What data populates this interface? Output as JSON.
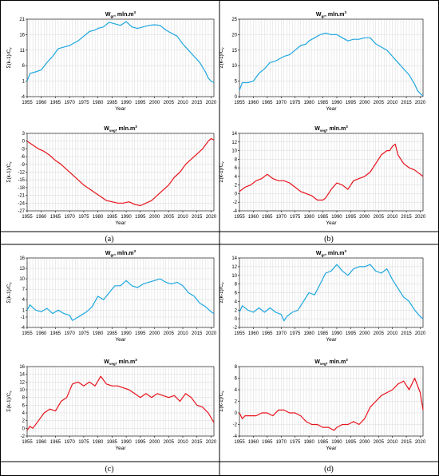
{
  "captions": [
    "(a)",
    "(b)",
    "(c)",
    "(d)"
  ],
  "colors": {
    "gw": "#1ea7e0",
    "veg": "#e8121b"
  },
  "chart_data": [
    {
      "type": "line",
      "panel": "a",
      "title_main": "W",
      "title_sub": "gr",
      "title_rest": ", mln.m",
      "title_sup": "3",
      "xlabel": "Year",
      "ylabel": "Σ(k-1)/C",
      "ylabel_sub": "v",
      "xlim": [
        1955,
        2021
      ],
      "ylim": [
        -4,
        21
      ],
      "yticks": [
        -4,
        1,
        6,
        11,
        16,
        21
      ],
      "xticks": [
        1955,
        1960,
        1965,
        1970,
        1975,
        1980,
        1985,
        1990,
        1995,
        2000,
        2005,
        2010,
        2015,
        2020
      ],
      "series_color": "gw",
      "x": [
        1955,
        1956,
        1958,
        1960,
        1962,
        1964,
        1966,
        1968,
        1970,
        1971,
        1973,
        1975,
        1977,
        1979,
        1980,
        1982,
        1984,
        1986,
        1988,
        1990,
        1992,
        1994,
        1996,
        1998,
        2000,
        2002,
        2004,
        2006,
        2008,
        2010,
        2012,
        2014,
        2016,
        2018,
        2019,
        2020,
        2021
      ],
      "y": [
        1,
        3.5,
        4,
        4.6,
        7,
        9,
        11.5,
        12,
        12.5,
        13,
        14,
        15.5,
        17,
        17.5,
        18,
        18.5,
        20,
        19.5,
        19,
        20.2,
        18.5,
        18,
        18.5,
        19,
        19.2,
        19,
        17.5,
        16.5,
        15.5,
        13,
        11,
        9,
        7,
        4,
        2,
        1,
        0.5
      ]
    },
    {
      "type": "line",
      "panel": "a",
      "title_main": "W",
      "title_sub": "veg",
      "title_rest": ", mln.m",
      "title_sup": "3",
      "xlabel": "Year",
      "ylabel": "Σ(k-1)/C",
      "ylabel_sub": "v",
      "xlim": [
        1955,
        2021
      ],
      "ylim": [
        -27,
        3
      ],
      "yticks": [
        -27,
        -24,
        -21,
        -18,
        -15,
        -12,
        -9,
        -6,
        -3,
        0,
        3
      ],
      "xticks": [
        1955,
        1960,
        1965,
        1970,
        1975,
        1980,
        1985,
        1990,
        1995,
        2000,
        2005,
        2010,
        2015,
        2020
      ],
      "series_color": "veg",
      "x": [
        1955,
        1957,
        1959,
        1961,
        1963,
        1965,
        1967,
        1969,
        1971,
        1973,
        1975,
        1977,
        1979,
        1981,
        1983,
        1985,
        1987,
        1989,
        1991,
        1993,
        1995,
        1997,
        1999,
        2001,
        2003,
        2005,
        2007,
        2009,
        2011,
        2013,
        2015,
        2017,
        2019,
        2020,
        2021
      ],
      "y": [
        0,
        -1.5,
        -3,
        -4,
        -5.5,
        -7.5,
        -9,
        -11,
        -13,
        -15,
        -17,
        -18.5,
        -20,
        -21.5,
        -23,
        -23.5,
        -24,
        -24,
        -23.5,
        -24.5,
        -25,
        -24,
        -23,
        -21,
        -19,
        -17,
        -14,
        -12,
        -9,
        -7,
        -5,
        -3,
        0,
        1,
        0.5
      ]
    },
    {
      "type": "line",
      "panel": "b",
      "title_main": "W",
      "title_sub": "gr",
      "title_rest": ", mln.m",
      "title_sup": "3",
      "xlabel": "Year",
      "ylabel": "Σ(k-1)/C",
      "ylabel_sub": "v",
      "xlim": [
        1955,
        2021
      ],
      "ylim": [
        0,
        25
      ],
      "yticks": [
        0,
        5,
        10,
        15,
        20,
        25
      ],
      "xticks": [
        1955,
        1960,
        1965,
        1970,
        1975,
        1980,
        1985,
        1990,
        1995,
        2000,
        2005,
        2010,
        2015,
        2020
      ],
      "series_color": "gw",
      "x": [
        1955,
        1956,
        1958,
        1960,
        1962,
        1964,
        1966,
        1968,
        1970,
        1971,
        1973,
        1975,
        1977,
        1979,
        1980,
        1982,
        1984,
        1986,
        1988,
        1990,
        1992,
        1994,
        1996,
        1998,
        2000,
        2002,
        2004,
        2006,
        2008,
        2010,
        2012,
        2014,
        2016,
        2018,
        2019,
        2020,
        2021
      ],
      "y": [
        2,
        4.5,
        4.5,
        5,
        7.5,
        9,
        11,
        11.5,
        12.5,
        13,
        13.5,
        15,
        16.5,
        17,
        18,
        19,
        20,
        20.5,
        20,
        20,
        19,
        18,
        18.5,
        18.5,
        19,
        19,
        17,
        16,
        15,
        13,
        11,
        9,
        7,
        4,
        2,
        1,
        0.2
      ]
    },
    {
      "type": "line",
      "panel": "b",
      "title_main": "W",
      "title_sub": "veg",
      "title_rest": ", mln.m",
      "title_sup": "3",
      "xlabel": "Year",
      "ylabel": "Σ(k-1)/C",
      "ylabel_sub": "v",
      "xlim": [
        1955,
        2021
      ],
      "ylim": [
        -4,
        14
      ],
      "yticks": [
        -4,
        -2,
        0,
        2,
        4,
        6,
        8,
        10,
        12,
        14
      ],
      "xticks": [
        1955,
        1960,
        1965,
        1970,
        1975,
        1980,
        1985,
        1990,
        1995,
        2000,
        2005,
        2010,
        2015,
        2020
      ],
      "series_color": "veg",
      "x": [
        1955,
        1957,
        1959,
        1961,
        1963,
        1965,
        1967,
        1969,
        1971,
        1973,
        1975,
        1977,
        1979,
        1981,
        1983,
        1985,
        1986,
        1988,
        1990,
        1992,
        1994,
        1996,
        1998,
        2000,
        2002,
        2004,
        2006,
        2008,
        2009,
        2010,
        2011,
        2012,
        2014,
        2016,
        2018,
        2020,
        2021
      ],
      "y": [
        0.5,
        1.5,
        2,
        3,
        3.5,
        4.5,
        3.5,
        3,
        3,
        2.5,
        1.5,
        0.5,
        0,
        -0.5,
        -1.5,
        -1.5,
        -1,
        1,
        2.5,
        2,
        1,
        3,
        3.5,
        4,
        5,
        7,
        9,
        10,
        10,
        11,
        11.5,
        9,
        7,
        6,
        5.5,
        4.5,
        4
      ]
    },
    {
      "type": "line",
      "panel": "c",
      "title_main": "W",
      "title_sub": "gr",
      "title_rest": ", mln.m",
      "title_sup": "3",
      "xlabel": "Year",
      "ylabel": "Σ(k-1)/C",
      "ylabel_sub": "v",
      "xlim": [
        1955,
        2021
      ],
      "ylim": [
        -4,
        16
      ],
      "yticks": [
        -4,
        -1,
        1,
        4,
        7,
        10,
        13,
        16
      ],
      "xticks": [
        1955,
        1960,
        1965,
        1970,
        1975,
        1980,
        1985,
        1990,
        1995,
        2000,
        2005,
        2010,
        2015,
        2020
      ],
      "series_color": "gw",
      "x": [
        1955,
        1956,
        1958,
        1960,
        1962,
        1964,
        1966,
        1968,
        1970,
        1971,
        1972,
        1974,
        1976,
        1978,
        1980,
        1982,
        1984,
        1986,
        1988,
        1990,
        1992,
        1994,
        1996,
        1998,
        2000,
        2002,
        2004,
        2006,
        2008,
        2010,
        2012,
        2014,
        2016,
        2018,
        2020,
        2021
      ],
      "y": [
        1,
        2.5,
        1,
        0.5,
        1.5,
        0,
        1,
        0,
        -0.5,
        -2,
        -1.5,
        -0.5,
        0.5,
        2,
        5,
        4,
        6,
        8,
        8,
        9.5,
        8,
        7.5,
        8.5,
        9,
        9.5,
        10,
        9,
        8.5,
        9,
        8,
        6,
        5,
        3,
        2,
        0.5,
        0
      ]
    },
    {
      "type": "line",
      "panel": "c",
      "title_main": "W",
      "title_sub": "veg",
      "title_rest": ", mln.m",
      "title_sup": "3",
      "xlabel": "Year",
      "ylabel": "Σ(k-1)/C",
      "ylabel_sub": "v",
      "xlim": [
        1955,
        2021
      ],
      "ylim": [
        -2,
        16
      ],
      "yticks": [
        -2,
        0,
        2,
        4,
        6,
        8,
        10,
        12,
        14,
        16
      ],
      "xticks": [
        1955,
        1960,
        1965,
        1970,
        1975,
        1980,
        1985,
        1990,
        1995,
        2000,
        2005,
        2010,
        2015,
        2020
      ],
      "series_color": "veg",
      "x": [
        1955,
        1956,
        1957,
        1959,
        1961,
        1963,
        1965,
        1967,
        1969,
        1971,
        1973,
        1975,
        1977,
        1979,
        1981,
        1983,
        1985,
        1987,
        1989,
        1991,
        1993,
        1995,
        1997,
        1999,
        2001,
        2003,
        2005,
        2007,
        2009,
        2011,
        2013,
        2015,
        2017,
        2019,
        2021
      ],
      "y": [
        -0.5,
        0.5,
        0,
        2,
        4,
        5,
        4.5,
        7,
        8,
        11.5,
        12,
        11,
        12,
        11,
        13.5,
        11.5,
        11,
        11,
        10.5,
        10,
        9,
        8,
        9,
        8,
        9,
        8.5,
        8,
        8.5,
        7,
        9,
        8,
        6,
        5.5,
        4,
        1.5
      ]
    },
    {
      "type": "line",
      "panel": "d",
      "title_main": "W",
      "title_sub": "gr",
      "title_rest": ", mln.m",
      "title_sup": "3",
      "xlabel": "Year",
      "ylabel": "Σ(k-1)/C",
      "ylabel_sub": "v",
      "xlim": [
        1955,
        2021
      ],
      "ylim": [
        -2,
        14
      ],
      "yticks": [
        -2,
        0,
        2,
        4,
        6,
        8,
        10,
        12,
        14
      ],
      "xticks": [
        1955,
        1960,
        1965,
        1970,
        1975,
        1980,
        1985,
        1990,
        1995,
        2000,
        2005,
        2010,
        2015,
        2020
      ],
      "series_color": "gw",
      "x": [
        1955,
        1956,
        1958,
        1960,
        1962,
        1964,
        1966,
        1968,
        1970,
        1971,
        1972,
        1974,
        1976,
        1978,
        1980,
        1982,
        1984,
        1986,
        1988,
        1990,
        1992,
        1994,
        1996,
        1998,
        2000,
        2002,
        2004,
        2006,
        2008,
        2010,
        2012,
        2014,
        2016,
        2018,
        2020,
        2021
      ],
      "y": [
        1.5,
        3,
        2,
        1.5,
        2.5,
        1.5,
        2.5,
        1.5,
        1,
        -0.5,
        0.5,
        1.5,
        2,
        4,
        6,
        5.5,
        8,
        10.5,
        11,
        12.5,
        11,
        10,
        11.5,
        12,
        12,
        12.5,
        11,
        10.5,
        11.5,
        9,
        7,
        5,
        4,
        2,
        0.5,
        0
      ]
    },
    {
      "type": "line",
      "panel": "d",
      "title_main": "W",
      "title_sub": "veg",
      "title_rest": ", mln.m",
      "title_sup": "3",
      "xlabel": "Year",
      "ylabel": "Σ(k-1)/C",
      "ylabel_sub": "v",
      "xlim": [
        1955,
        2021
      ],
      "ylim": [
        -4,
        8
      ],
      "yticks": [
        -4,
        -2,
        0,
        2,
        4,
        6,
        8
      ],
      "xticks": [
        1955,
        1960,
        1965,
        1970,
        1975,
        1980,
        1985,
        1990,
        1995,
        2000,
        2005,
        2010,
        2015,
        2020
      ],
      "series_color": "veg",
      "x": [
        1955,
        1956,
        1957,
        1959,
        1961,
        1963,
        1965,
        1967,
        1969,
        1971,
        1973,
        1975,
        1977,
        1979,
        1981,
        1983,
        1985,
        1987,
        1989,
        1990,
        1992,
        1994,
        1996,
        1998,
        2000,
        2002,
        2004,
        2006,
        2008,
        2010,
        2012,
        2014,
        2016,
        2018,
        2020,
        2021
      ],
      "y": [
        0,
        -1,
        -0.5,
        -0.5,
        -0.5,
        0,
        0,
        -0.5,
        0.5,
        0.5,
        0,
        0,
        -0.5,
        -1.5,
        -2,
        -2,
        -2.5,
        -2.5,
        -3,
        -2.5,
        -2,
        -2,
        -1.5,
        -2,
        -1,
        1,
        2,
        3,
        3.5,
        4,
        5,
        5.5,
        4,
        6,
        3.5,
        0.5
      ]
    }
  ]
}
